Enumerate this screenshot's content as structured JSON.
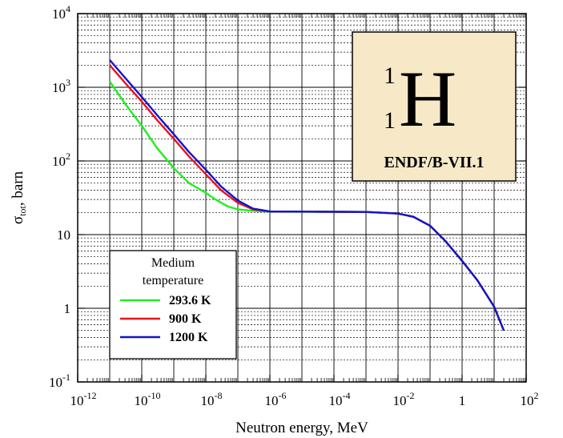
{
  "chart_data": {
    "type": "line",
    "title": "",
    "xlabel": "Neutron energy, MeV",
    "ylabel": {
      "main": "σ",
      "sub": "tot",
      "rest": ", barn"
    },
    "xscale": "log",
    "yscale": "log",
    "xlim": [
      1e-12,
      100
    ],
    "ylim": [
      0.1,
      10000
    ],
    "grid": true,
    "x_ticks": [
      {
        "value": 1e-12,
        "base": "10",
        "exp": "-12"
      },
      {
        "value": 1e-10,
        "base": "10",
        "exp": "-10"
      },
      {
        "value": 1e-08,
        "base": "10",
        "exp": "-8"
      },
      {
        "value": 1e-06,
        "base": "10",
        "exp": "-6"
      },
      {
        "value": 0.0001,
        "base": "10",
        "exp": "-4"
      },
      {
        "value": 0.01,
        "base": "10",
        "exp": "-2"
      },
      {
        "value": 1,
        "base": "1",
        "exp": ""
      },
      {
        "value": 100,
        "base": "10",
        "exp": "2"
      }
    ],
    "y_ticks": [
      {
        "value": 0.1,
        "base": "10",
        "exp": "-1"
      },
      {
        "value": 1,
        "base": "1",
        "exp": ""
      },
      {
        "value": 10,
        "base": "10",
        "exp": ""
      },
      {
        "value": 100,
        "base": "10",
        "exp": "2"
      },
      {
        "value": 1000,
        "base": "10",
        "exp": "3"
      },
      {
        "value": 10000,
        "base": "10",
        "exp": "4"
      }
    ],
    "legend": {
      "title": "Medium temperature",
      "title_lines": [
        "Medium",
        "temperature"
      ],
      "placement": "bottom-left"
    },
    "series": [
      {
        "name": "293.6 K",
        "color": "#22ee22",
        "points": [
          [
            1e-11,
            1200
          ],
          [
            3e-11,
            600
          ],
          [
            1e-10,
            300
          ],
          [
            3e-10,
            150
          ],
          [
            1e-09,
            80
          ],
          [
            3e-09,
            50
          ],
          [
            1e-08,
            37
          ],
          [
            2e-08,
            30
          ],
          [
            5e-08,
            24
          ],
          [
            1e-07,
            22
          ],
          [
            3e-07,
            21
          ],
          [
            1e-06,
            20.5
          ],
          [
            0.0001,
            20.4
          ],
          [
            0.001,
            20.3
          ],
          [
            0.01,
            19.3
          ],
          [
            0.03,
            17.5
          ],
          [
            0.1,
            13.2
          ],
          [
            0.3,
            8.2
          ],
          [
            1,
            4.4
          ],
          [
            3,
            2.4
          ],
          [
            10,
            1.05
          ],
          [
            20,
            0.5
          ]
        ]
      },
      {
        "name": "900 K",
        "color": "#e8141c",
        "points": [
          [
            1e-11,
            2000
          ],
          [
            3e-11,
            1150
          ],
          [
            1e-10,
            640
          ],
          [
            3e-10,
            360
          ],
          [
            1e-09,
            200
          ],
          [
            3e-09,
            115
          ],
          [
            1e-08,
            66
          ],
          [
            3e-08,
            40
          ],
          [
            1e-07,
            27
          ],
          [
            3e-07,
            22
          ],
          [
            1e-06,
            20.6
          ],
          [
            0.0001,
            20.4
          ],
          [
            0.001,
            20.3
          ],
          [
            0.01,
            19.3
          ],
          [
            0.03,
            17.5
          ],
          [
            0.1,
            13.2
          ],
          [
            0.3,
            8.2
          ],
          [
            1,
            4.4
          ],
          [
            3,
            2.4
          ],
          [
            10,
            1.05
          ],
          [
            20,
            0.5
          ]
        ]
      },
      {
        "name": "1200 K",
        "color": "#1414c8",
        "points": [
          [
            1e-11,
            2350
          ],
          [
            3e-11,
            1350
          ],
          [
            1e-10,
            740
          ],
          [
            3e-10,
            420
          ],
          [
            1e-09,
            230
          ],
          [
            3e-09,
            132
          ],
          [
            1e-08,
            76
          ],
          [
            3e-08,
            45
          ],
          [
            1e-07,
            29
          ],
          [
            3e-07,
            22.5
          ],
          [
            1e-06,
            20.6
          ],
          [
            0.0001,
            20.4
          ],
          [
            0.001,
            20.3
          ],
          [
            0.01,
            19.3
          ],
          [
            0.03,
            17.5
          ],
          [
            0.1,
            13.2
          ],
          [
            0.3,
            8.2
          ],
          [
            1,
            4.4
          ],
          [
            3,
            2.4
          ],
          [
            10,
            1.05
          ],
          [
            20,
            0.5
          ]
        ]
      }
    ],
    "element_box": {
      "mass_number": "1",
      "atomic_number": "1",
      "symbol": "H",
      "library": "ENDF/B-VII.1",
      "background": "#f7e9c8",
      "placement": "top-right"
    }
  }
}
